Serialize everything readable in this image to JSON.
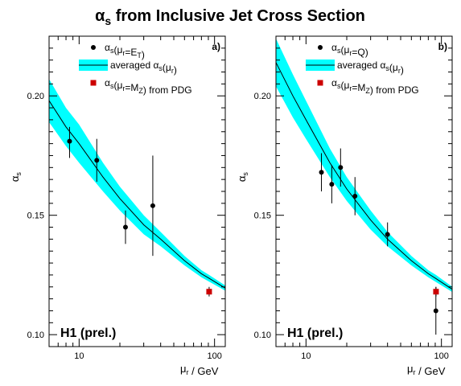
{
  "figure": {
    "title_main": "α",
    "title_sub": "s",
    "title_rest": " from Inclusive Jet Cross Section"
  },
  "chart_data": [
    {
      "type": "scatter",
      "panel_label": "a)",
      "watermark": "H1 (prel.)",
      "xscale": "log",
      "xlim": [
        6,
        120
      ],
      "ylim": [
        0.095,
        0.225
      ],
      "xlabel": "μr / GeV",
      "ylabel": "αs",
      "x_ticks_labeled": [
        {
          "v": 10,
          "label": "10"
        },
        {
          "v": 100,
          "label": "100"
        }
      ],
      "y_ticks_labeled": [
        {
          "v": 0.1,
          "label": "0.10"
        },
        {
          "v": 0.15,
          "label": "0.15"
        },
        {
          "v": 0.2,
          "label": "0.20"
        }
      ],
      "legend": {
        "position": "top-right",
        "entries": [
          {
            "marker": "dot",
            "label": "αs(μr=ET)"
          },
          {
            "marker": "band",
            "label": "averaged αs(μr)"
          },
          {
            "marker": "square",
            "label": "αs(μr=MZ) from PDG"
          }
        ]
      },
      "band": {
        "color": "#00ffff",
        "x": [
          6,
          8,
          10,
          15,
          20,
          30,
          40,
          60,
          80,
          91.2,
          120
        ],
        "y": [
          0.198,
          0.187,
          0.18,
          0.166,
          0.157,
          0.146,
          0.14,
          0.131,
          0.1255,
          0.1236,
          0.1195
        ],
        "low": [
          0.189,
          0.179,
          0.172,
          0.16,
          0.152,
          0.142,
          0.137,
          0.129,
          0.124,
          0.1222,
          0.1184
        ],
        "high": [
          0.207,
          0.195,
          0.188,
          0.172,
          0.162,
          0.15,
          0.143,
          0.133,
          0.127,
          0.125,
          0.1206
        ]
      },
      "points": [
        {
          "x": 8.5,
          "y": 0.181,
          "err_low": 0.007,
          "err_high": 0.006
        },
        {
          "x": 13.5,
          "y": 0.173,
          "err_low": 0.009,
          "err_high": 0.009
        },
        {
          "x": 22,
          "y": 0.145,
          "err_low": 0.007,
          "err_high": 0.007
        },
        {
          "x": 35,
          "y": 0.154,
          "err_low": 0.021,
          "err_high": 0.021
        }
      ],
      "pdg": {
        "x": 91.2,
        "y": 0.118,
        "err": 0.002,
        "color": "#cc0000"
      }
    },
    {
      "type": "scatter",
      "panel_label": "b)",
      "watermark": "H1 (prel.)",
      "xscale": "log",
      "xlim": [
        6,
        120
      ],
      "ylim": [
        0.095,
        0.225
      ],
      "xlabel": "μr / GeV",
      "ylabel": "αs",
      "x_ticks_labeled": [
        {
          "v": 10,
          "label": "10"
        },
        {
          "v": 100,
          "label": "100"
        }
      ],
      "y_ticks_labeled": [
        {
          "v": 0.1,
          "label": "0.10"
        },
        {
          "v": 0.15,
          "label": "0.15"
        },
        {
          "v": 0.2,
          "label": "0.20"
        }
      ],
      "legend": {
        "position": "top-right",
        "entries": [
          {
            "marker": "dot",
            "label": "αs(μr=Q)"
          },
          {
            "marker": "band",
            "label": "averaged αs(μr)"
          },
          {
            "marker": "square",
            "label": "αs(μr=MZ) from PDG"
          }
        ]
      },
      "band": {
        "color": "#00ffff",
        "x": [
          6,
          8,
          10,
          15,
          20,
          30,
          40,
          60,
          80,
          91.2,
          120
        ],
        "y": [
          0.214,
          0.2,
          0.19,
          0.172,
          0.161,
          0.148,
          0.14,
          0.131,
          0.1255,
          0.1235,
          0.119
        ],
        "low": [
          0.204,
          0.191,
          0.182,
          0.166,
          0.156,
          0.144,
          0.137,
          0.129,
          0.124,
          0.122,
          0.1179
        ],
        "high": [
          0.224,
          0.209,
          0.198,
          0.178,
          0.166,
          0.152,
          0.143,
          0.133,
          0.127,
          0.125,
          0.1201
        ]
      },
      "points": [
        {
          "x": 13,
          "y": 0.168,
          "err_low": 0.008,
          "err_high": 0.008
        },
        {
          "x": 15.5,
          "y": 0.163,
          "err_low": 0.008,
          "err_high": 0.008
        },
        {
          "x": 18,
          "y": 0.17,
          "err_low": 0.008,
          "err_high": 0.008
        },
        {
          "x": 23,
          "y": 0.158,
          "err_low": 0.008,
          "err_high": 0.008
        },
        {
          "x": 40,
          "y": 0.142,
          "err_low": 0.005,
          "err_high": 0.005
        },
        {
          "x": 91,
          "y": 0.11,
          "err_low": 0.01,
          "err_high": 0.01
        }
      ],
      "pdg": {
        "x": 91.2,
        "y": 0.118,
        "err": 0.002,
        "color": "#cc0000"
      }
    }
  ]
}
